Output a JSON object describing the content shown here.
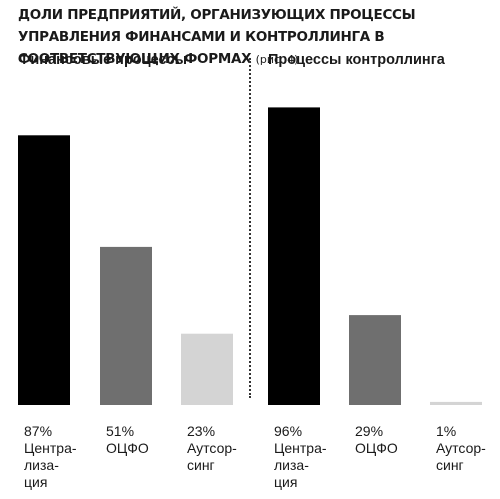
{
  "title": "Доли предприятий, организующих процессы управления финансами и контроллинга в соответствующих формах",
  "title_note": "(рис. 4)",
  "colors": {
    "black": "#000000",
    "gray": "#6f6f6f",
    "light": "#d4d4d4"
  },
  "chart_data": [
    {
      "type": "bar",
      "title": "Финансовые процессы",
      "categories": [
        "Центра-\nлиза-\nция",
        "ОЦФО",
        "Аутсор-\nсинг"
      ],
      "values": [
        87,
        51,
        23
      ],
      "value_labels": [
        "87%",
        "51%",
        "23%"
      ],
      "ylim": [
        0,
        100
      ]
    },
    {
      "type": "bar",
      "title": "Процессы контроллинга",
      "categories": [
        "Центра-\nлиза-\nция",
        "ОЦФО",
        "Аутсор-\nсинг"
      ],
      "values": [
        96,
        29,
        1
      ],
      "value_labels": [
        "96%",
        "29%",
        "1%"
      ],
      "ylim": [
        0,
        100
      ]
    }
  ]
}
